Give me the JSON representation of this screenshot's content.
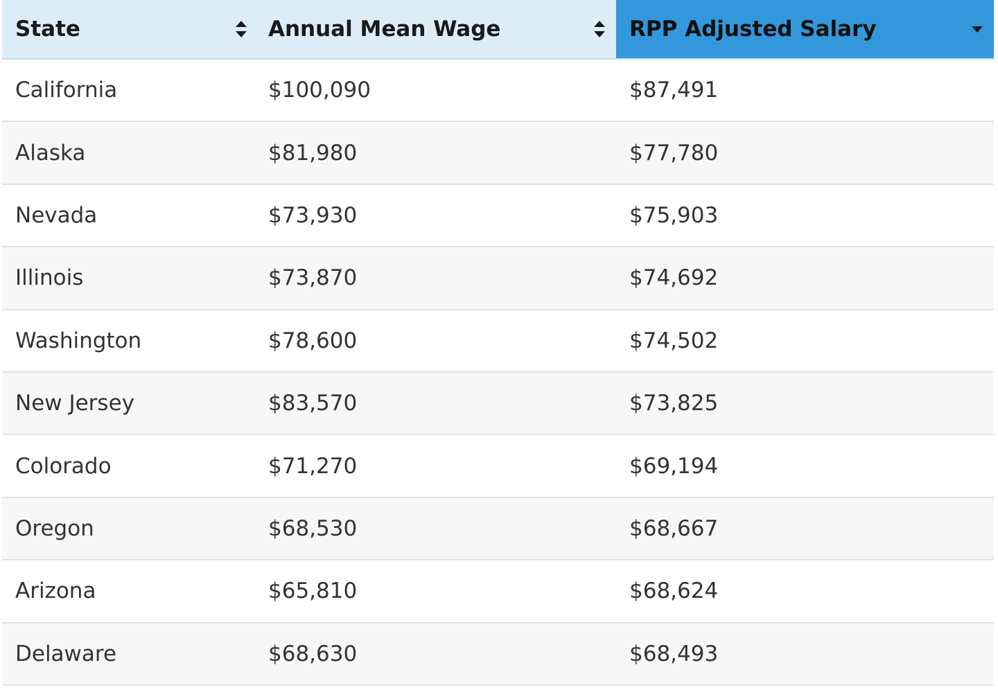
{
  "table": {
    "headers": [
      {
        "label": "State",
        "sort": "unsorted"
      },
      {
        "label": "Annual Mean Wage",
        "sort": "unsorted"
      },
      {
        "label": "RPP Adjusted Salary",
        "sort": "descending"
      }
    ],
    "rows": [
      {
        "state": "California",
        "wage": "$100,090",
        "rpp": "$87,491"
      },
      {
        "state": "Alaska",
        "wage": "$81,980",
        "rpp": "$77,780"
      },
      {
        "state": "Nevada",
        "wage": "$73,930",
        "rpp": "$75,903"
      },
      {
        "state": "Illinois",
        "wage": "$73,870",
        "rpp": "$74,692"
      },
      {
        "state": "Washington",
        "wage": "$78,600",
        "rpp": "$74,502"
      },
      {
        "state": "New Jersey",
        "wage": "$83,570",
        "rpp": "$73,825"
      },
      {
        "state": "Colorado",
        "wage": "$71,270",
        "rpp": "$69,194"
      },
      {
        "state": "Oregon",
        "wage": "$68,530",
        "rpp": "$68,667"
      },
      {
        "state": "Arizona",
        "wage": "$65,810",
        "rpp": "$68,624"
      },
      {
        "state": "Delaware",
        "wage": "$68,630",
        "rpp": "$68,493"
      }
    ]
  },
  "colors": {
    "header_bg": "#dcedf8",
    "active_header_bg": "#3398db",
    "row_alt_bg": "#f7f7f7",
    "border": "#e2e2e2"
  },
  "icons": {
    "unsorted": "sort-both-icon",
    "descending": "sort-desc-icon"
  }
}
